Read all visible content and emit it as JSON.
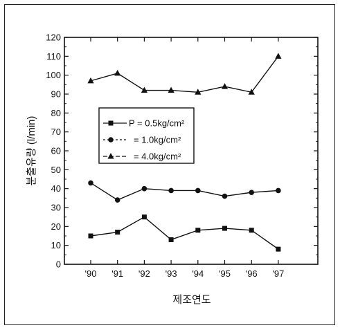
{
  "chart_data": {
    "type": "line",
    "xlabel": "제조연도",
    "ylabel": "분출유량 (l/min)",
    "categories": [
      "'90",
      "'91",
      "'92",
      "'93",
      "'94",
      "'95",
      "'96",
      "'97"
    ],
    "ylim": [
      0,
      120
    ],
    "yticks": [
      0,
      10,
      20,
      30,
      40,
      50,
      60,
      70,
      80,
      90,
      100,
      110,
      120
    ],
    "grid": false,
    "legend_position": "center-left",
    "series": [
      {
        "name": "P = 0.5kg/cm²",
        "marker": "square",
        "values": [
          15,
          17,
          25,
          13,
          18,
          19,
          18,
          8
        ]
      },
      {
        "name": "= 1.0kg/cm²",
        "marker": "circle",
        "values": [
          43,
          34,
          40,
          39,
          39,
          36,
          38,
          39
        ]
      },
      {
        "name": "= 4.0kg/cm²",
        "marker": "triangle",
        "values": [
          97,
          101,
          92,
          92,
          91,
          94,
          91,
          110
        ]
      }
    ],
    "colors": {
      "line": "#111111"
    }
  }
}
